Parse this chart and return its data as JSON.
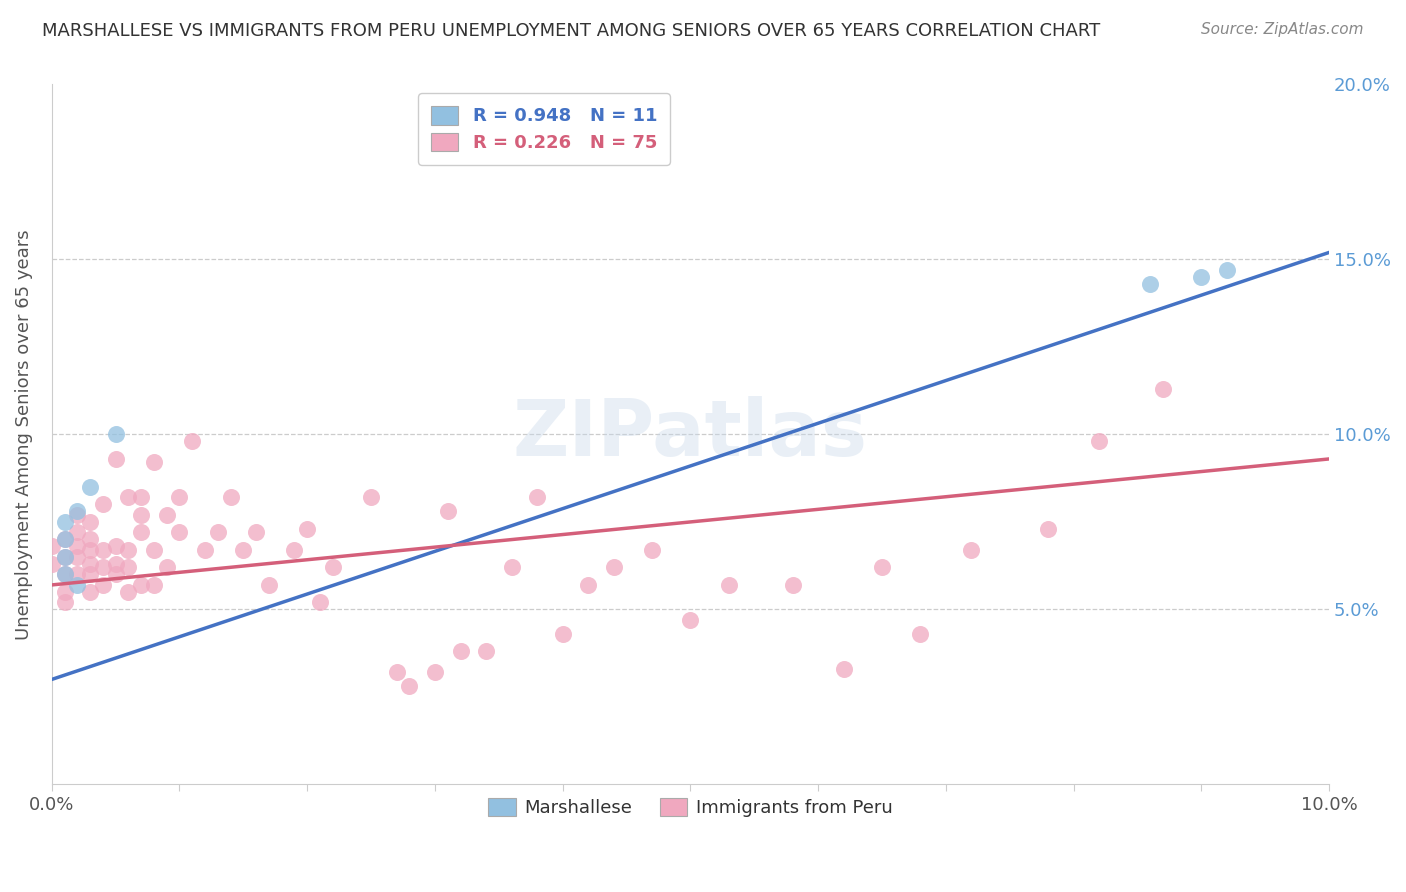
{
  "title": "MARSHALLESE VS IMMIGRANTS FROM PERU UNEMPLOYMENT AMONG SENIORS OVER 65 YEARS CORRELATION CHART",
  "source": "Source: ZipAtlas.com",
  "ylabel": "Unemployment Among Seniors over 65 years",
  "xlim": [
    0,
    0.1
  ],
  "ylim": [
    0,
    0.2
  ],
  "blue_R": 0.948,
  "blue_N": 11,
  "pink_R": 0.226,
  "pink_N": 75,
  "blue_color": "#92c0e0",
  "pink_color": "#f0a8bf",
  "blue_line_color": "#4472c4",
  "pink_line_color": "#d45f7a",
  "watermark": "ZIPatlas",
  "blue_line_x": [
    0.0,
    0.1
  ],
  "blue_line_y": [
    0.03,
    0.152
  ],
  "pink_line_x": [
    0.0,
    0.1
  ],
  "pink_line_y": [
    0.057,
    0.093
  ],
  "blue_scatter_x": [
    0.001,
    0.001,
    0.001,
    0.001,
    0.002,
    0.002,
    0.003,
    0.005,
    0.086,
    0.09,
    0.092
  ],
  "blue_scatter_y": [
    0.06,
    0.065,
    0.07,
    0.075,
    0.057,
    0.078,
    0.085,
    0.1,
    0.143,
    0.145,
    0.147
  ],
  "pink_scatter_x": [
    0.0,
    0.0,
    0.001,
    0.001,
    0.001,
    0.001,
    0.001,
    0.002,
    0.002,
    0.002,
    0.002,
    0.002,
    0.003,
    0.003,
    0.003,
    0.003,
    0.003,
    0.003,
    0.004,
    0.004,
    0.004,
    0.004,
    0.005,
    0.005,
    0.005,
    0.005,
    0.006,
    0.006,
    0.006,
    0.006,
    0.007,
    0.007,
    0.007,
    0.007,
    0.008,
    0.008,
    0.008,
    0.009,
    0.009,
    0.01,
    0.01,
    0.011,
    0.012,
    0.013,
    0.014,
    0.015,
    0.016,
    0.017,
    0.019,
    0.02,
    0.021,
    0.022,
    0.025,
    0.027,
    0.028,
    0.03,
    0.031,
    0.032,
    0.034,
    0.036,
    0.038,
    0.04,
    0.042,
    0.044,
    0.047,
    0.05,
    0.053,
    0.058,
    0.062,
    0.065,
    0.068,
    0.072,
    0.078,
    0.082,
    0.087
  ],
  "pink_scatter_y": [
    0.063,
    0.068,
    0.052,
    0.055,
    0.06,
    0.065,
    0.07,
    0.06,
    0.065,
    0.068,
    0.072,
    0.077,
    0.055,
    0.06,
    0.063,
    0.067,
    0.07,
    0.075,
    0.057,
    0.062,
    0.067,
    0.08,
    0.06,
    0.063,
    0.068,
    0.093,
    0.055,
    0.062,
    0.067,
    0.082,
    0.057,
    0.072,
    0.077,
    0.082,
    0.057,
    0.067,
    0.092,
    0.062,
    0.077,
    0.072,
    0.082,
    0.098,
    0.067,
    0.072,
    0.082,
    0.067,
    0.072,
    0.057,
    0.067,
    0.073,
    0.052,
    0.062,
    0.082,
    0.032,
    0.028,
    0.032,
    0.078,
    0.038,
    0.038,
    0.062,
    0.082,
    0.043,
    0.057,
    0.062,
    0.067,
    0.047,
    0.057,
    0.057,
    0.033,
    0.062,
    0.043,
    0.067,
    0.073,
    0.098,
    0.113
  ]
}
